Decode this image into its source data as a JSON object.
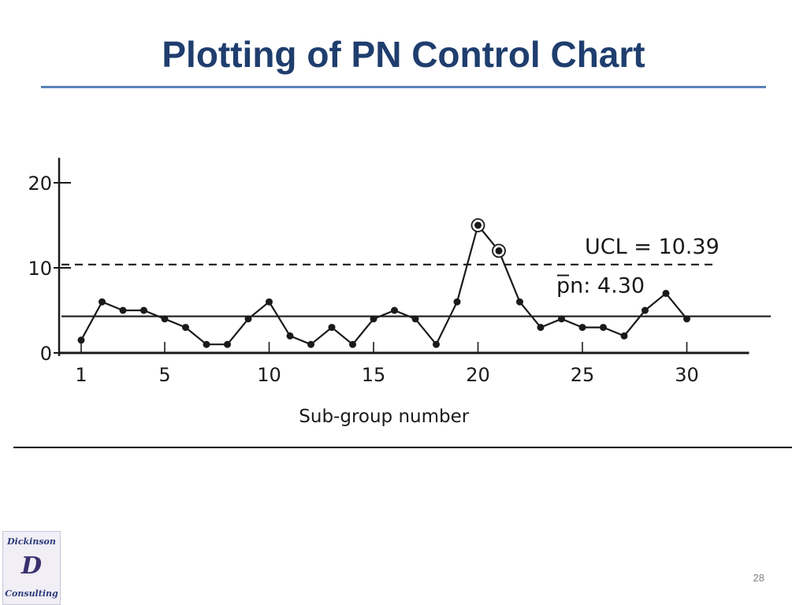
{
  "slide": {
    "title": "Plotting of PN Control Chart",
    "page_number": "28"
  },
  "logo": {
    "line1": "Dickinson",
    "monogram": "D",
    "line2": "Consulting"
  },
  "chart_data": {
    "type": "line",
    "title": "",
    "xlabel": "Sub-group number",
    "ylabel": "",
    "x_ticks": [
      1,
      5,
      10,
      15,
      20,
      25,
      30
    ],
    "y_ticks": [
      0,
      10,
      20
    ],
    "xlim": [
      0,
      32
    ],
    "ylim": [
      0,
      22
    ],
    "ucl": {
      "label": "UCL = 10.39",
      "value": 10.39
    },
    "center_line": {
      "label": "pn: 4.30",
      "value": 4.3
    },
    "series": [
      {
        "x": [
          1,
          2,
          3,
          4,
          5,
          6,
          7,
          8,
          9,
          10,
          11,
          12,
          13,
          14,
          15,
          16,
          17,
          18,
          19,
          20,
          21,
          22,
          23,
          24,
          25,
          26,
          27,
          28,
          29,
          30
        ],
        "values": [
          1.5,
          6,
          5,
          5,
          4,
          3,
          1,
          1,
          4,
          6,
          2,
          1,
          3,
          1,
          4,
          5,
          4,
          1,
          6,
          15,
          12,
          6,
          3,
          4,
          3,
          3,
          2,
          5,
          7,
          4
        ]
      }
    ],
    "out_of_control_points": [
      20,
      21
    ],
    "grid": false
  }
}
